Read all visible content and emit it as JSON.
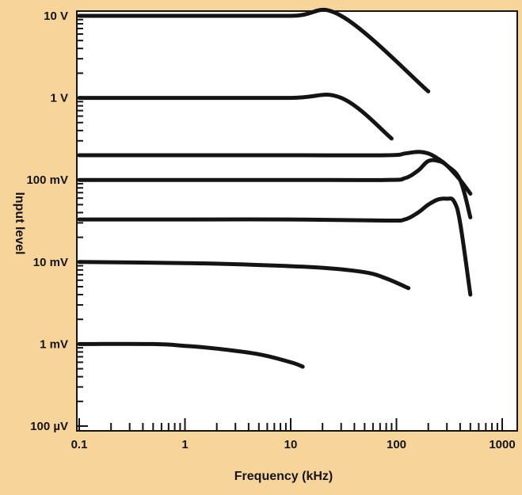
{
  "chart_data": {
    "type": "line",
    "xlabel": "Frequency (kHz)",
    "ylabel": "Input level",
    "x_scale": "log",
    "y_scale": "log",
    "xlim": [
      0.1,
      1000
    ],
    "ylim_volts": [
      0.0001,
      10
    ],
    "x_ticks": [
      {
        "value": 0.1,
        "label": "0.1"
      },
      {
        "value": 1,
        "label": "1"
      },
      {
        "value": 10,
        "label": "10"
      },
      {
        "value": 100,
        "label": "100"
      },
      {
        "value": 1000,
        "label": "1000"
      }
    ],
    "y_ticks": [
      {
        "value": 10,
        "label": "10 V"
      },
      {
        "value": 1,
        "label": "1 V"
      },
      {
        "value": 0.1,
        "label": "100 mV"
      },
      {
        "value": 0.01,
        "label": "10 mV"
      },
      {
        "value": 0.001,
        "label": "1 mV"
      },
      {
        "value": 0.0001,
        "label": "100 µV"
      }
    ],
    "grid": false,
    "series": [
      {
        "x": [
          0.1,
          1,
          10,
          30,
          200
        ],
        "y": [
          10,
          10,
          10,
          10,
          1.2
        ]
      },
      {
        "x": [
          0.1,
          1,
          10,
          30,
          90
        ],
        "y": [
          1,
          1,
          1,
          1,
          0.32
        ]
      },
      {
        "x": [
          0.1,
          1,
          10,
          80,
          120,
          160,
          200,
          250,
          300,
          400,
          500
        ],
        "y": [
          0.2,
          0.2,
          0.2,
          0.2,
          0.21,
          0.22,
          0.21,
          0.18,
          0.15,
          0.1,
          0.068
        ]
      },
      {
        "x": [
          0.1,
          1,
          10,
          80,
          120,
          160,
          200,
          250,
          300,
          400,
          500
        ],
        "y": [
          0.1,
          0.1,
          0.1,
          0.1,
          0.105,
          0.13,
          0.17,
          0.17,
          0.15,
          0.1,
          0.035
        ]
      },
      {
        "x": [
          0.1,
          1,
          10,
          80,
          120,
          160,
          200,
          250,
          300,
          350,
          400,
          500
        ],
        "y": [
          0.033,
          0.033,
          0.033,
          0.032,
          0.033,
          0.04,
          0.05,
          0.058,
          0.059,
          0.055,
          0.03,
          0.004
        ]
      },
      {
        "x": [
          0.1,
          1,
          5,
          20,
          50,
          80,
          130
        ],
        "y": [
          0.01,
          0.0097,
          0.0092,
          0.0085,
          0.0075,
          0.0063,
          0.0048
        ]
      },
      {
        "x": [
          0.1,
          0.5,
          1,
          2,
          5,
          10,
          13
        ],
        "y": [
          0.001,
          0.001,
          0.00095,
          0.00088,
          0.00075,
          0.0006,
          0.00053
        ]
      }
    ]
  }
}
